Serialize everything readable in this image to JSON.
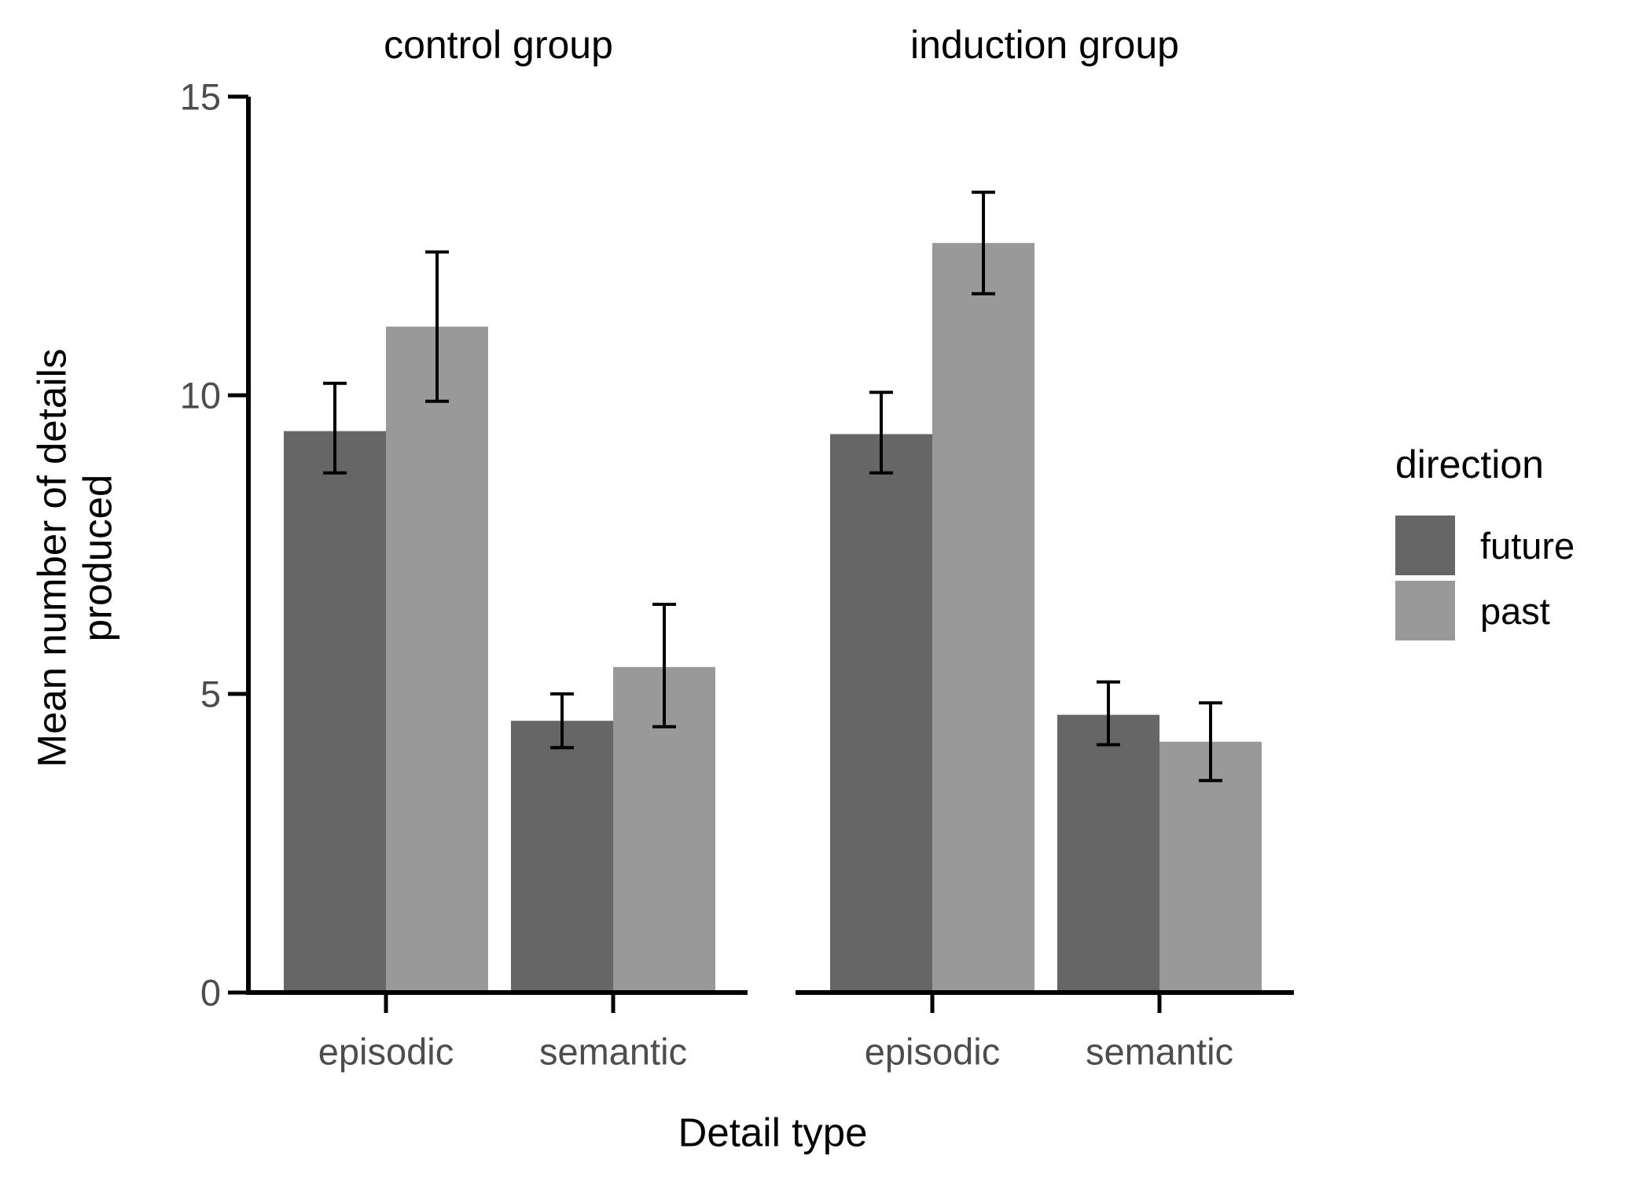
{
  "figure": {
    "background": "#FFFFFF"
  },
  "chart_data": {
    "type": "bar",
    "title": "",
    "facets": [
      {
        "label": "control group",
        "categories": [
          "episodic",
          "semantic"
        ],
        "series": [
          {
            "name": "future",
            "values": [
              9.4,
              4.55
            ],
            "err_lo": [
              8.7,
              4.1
            ],
            "err_hi": [
              10.2,
              5.0
            ]
          },
          {
            "name": "past",
            "values": [
              11.15,
              5.45
            ],
            "err_lo": [
              9.9,
              4.45
            ],
            "err_hi": [
              12.4,
              6.5
            ]
          }
        ]
      },
      {
        "label": "induction group",
        "categories": [
          "episodic",
          "semantic"
        ],
        "series": [
          {
            "name": "future",
            "values": [
              9.35,
              4.65
            ],
            "err_lo": [
              8.7,
              4.15
            ],
            "err_hi": [
              10.05,
              5.2
            ]
          },
          {
            "name": "past",
            "values": [
              12.55,
              4.2
            ],
            "err_lo": [
              11.7,
              3.55
            ],
            "err_hi": [
              13.4,
              4.85
            ]
          }
        ]
      }
    ],
    "xlabel": "Detail type",
    "ylabel": "Mean number of details produced",
    "ylabel_lines": [
      "Mean number of details",
      "produced"
    ],
    "ylim": [
      0,
      15
    ],
    "yticks": [
      0,
      5,
      10,
      15
    ],
    "ytick_labels": [
      "0",
      "5",
      "10",
      "15"
    ],
    "grid": false,
    "error_bars": true,
    "legend": {
      "title": "direction",
      "position": "right",
      "entries": [
        {
          "label": "future",
          "color": "#666666"
        },
        {
          "label": "past",
          "color": "#999999"
        }
      ]
    },
    "colors": {
      "future": "#666666",
      "past": "#999999",
      "axis": "#000000",
      "tick_text": "#4D4D4D",
      "title_text": "#000000"
    }
  }
}
